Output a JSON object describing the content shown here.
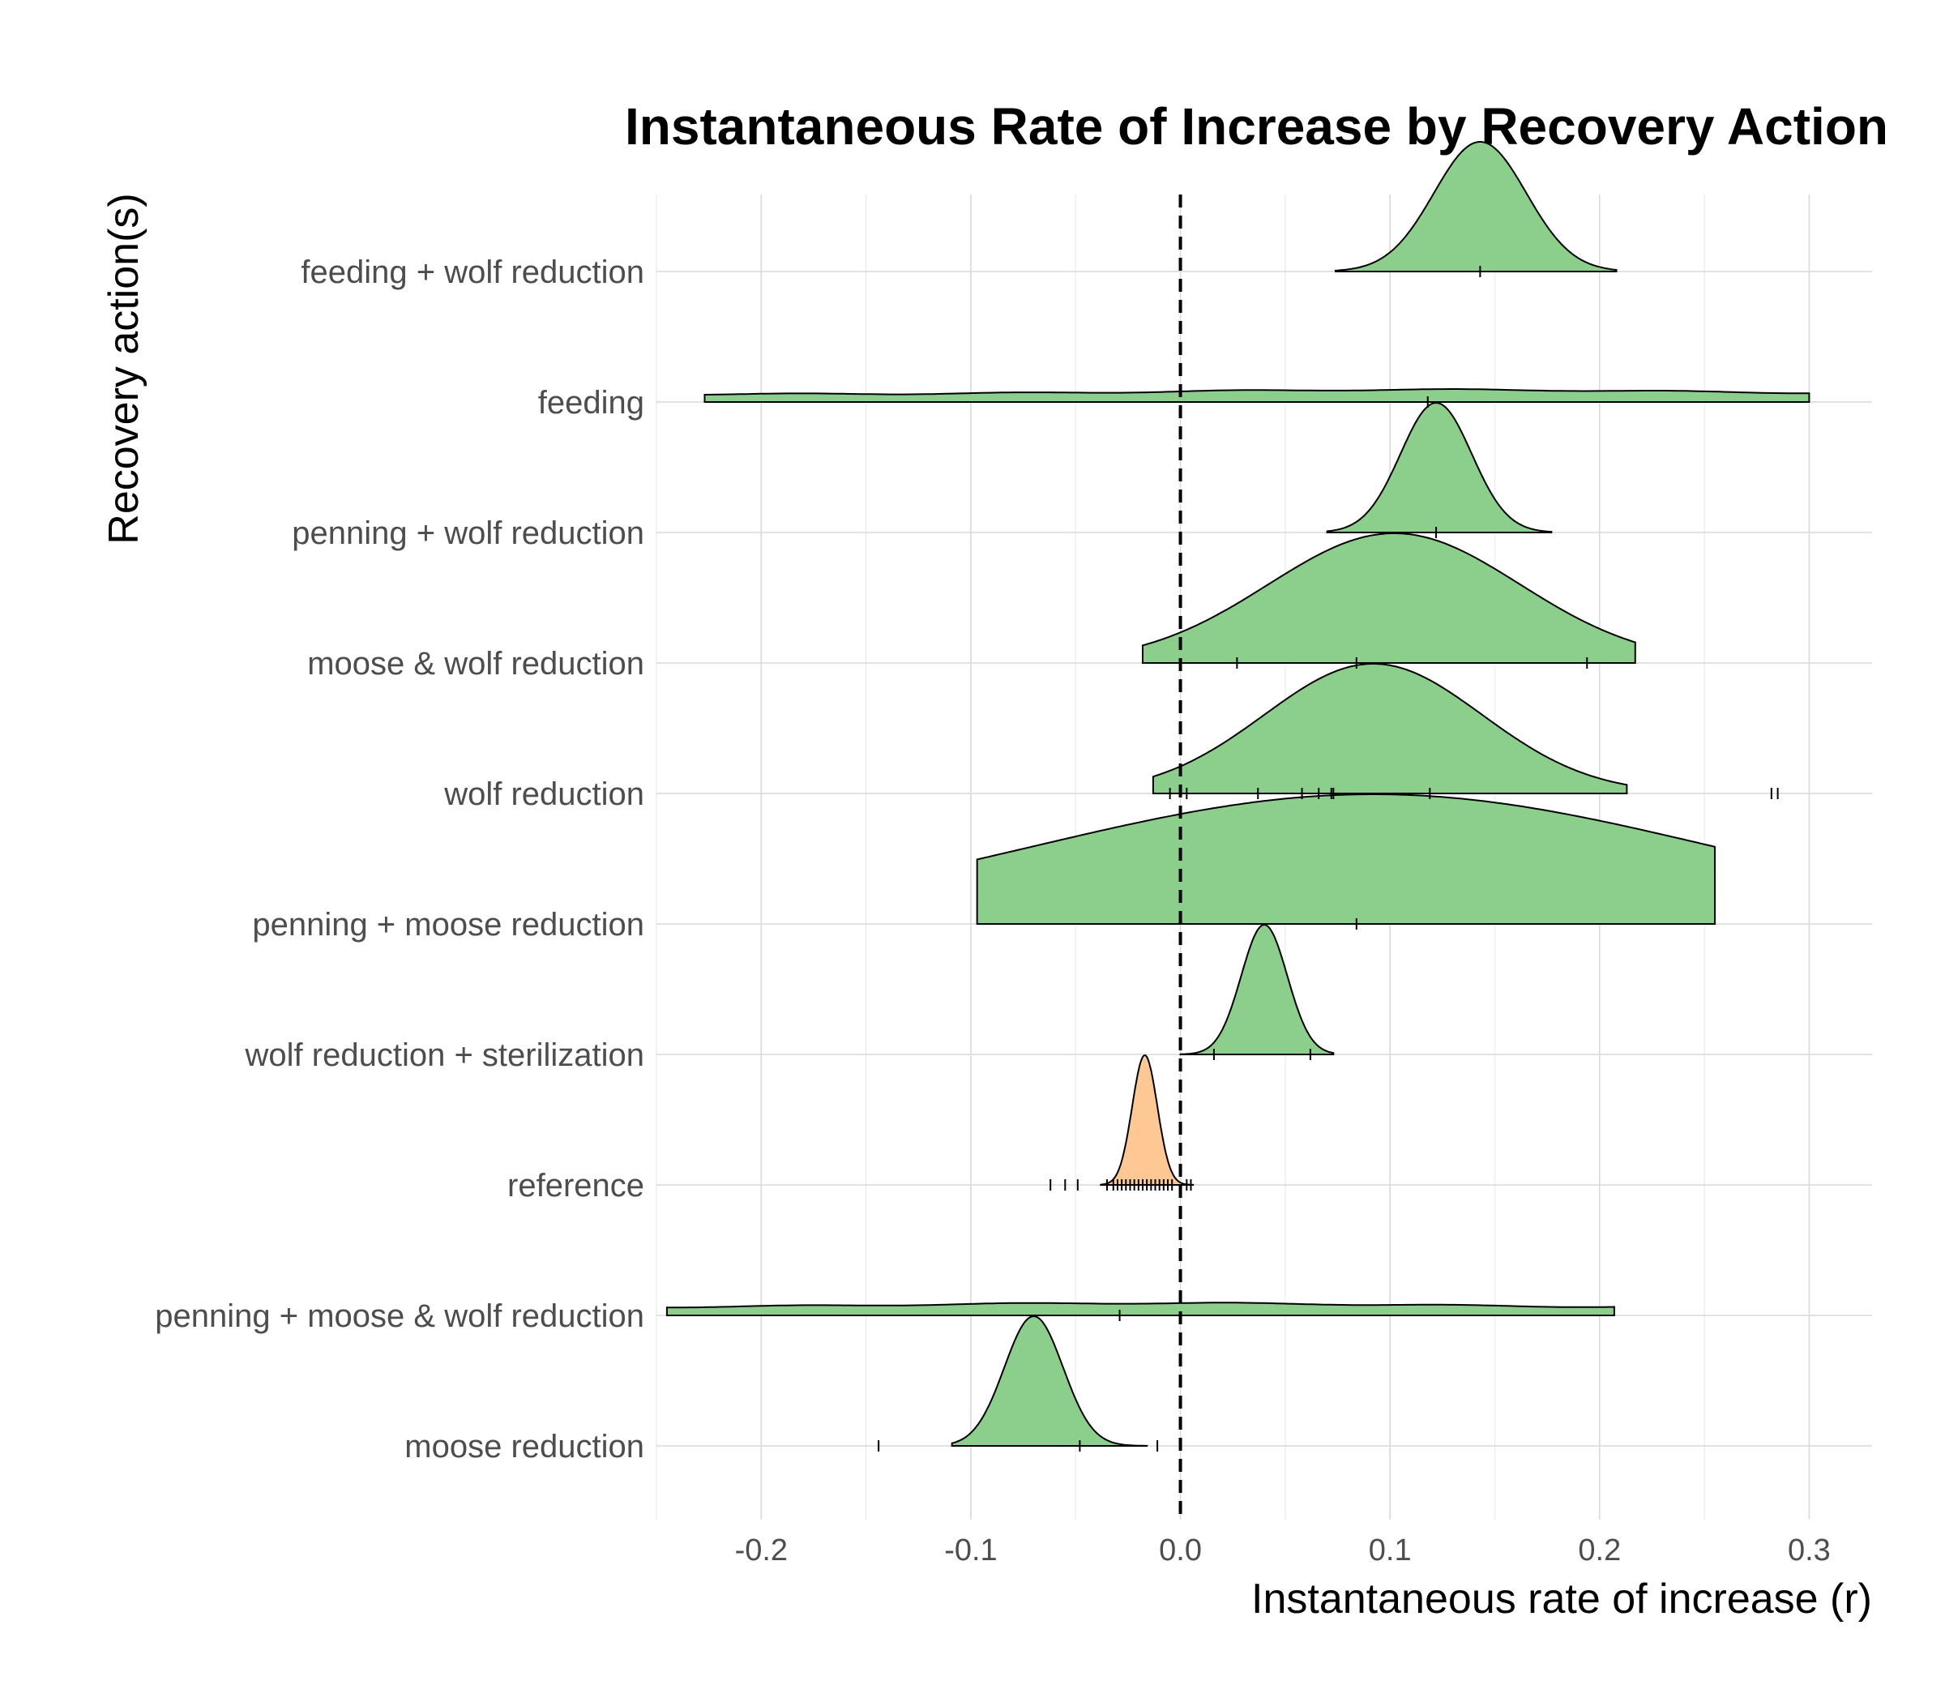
{
  "chart_data": {
    "type": "ridgeline",
    "title": "Instantaneous Rate of Increase by Recovery Action",
    "xlabel": "Instantaneous rate of increase (r)",
    "ylabel": "Recovery action(s)",
    "xlim": [
      -0.25,
      0.33
    ],
    "x_ticks": [
      -0.2,
      -0.1,
      0.0,
      0.1,
      0.2,
      0.3
    ],
    "x_tick_labels": [
      "-0.2",
      "-0.1",
      "0.0",
      "0.1",
      "0.2",
      "0.3"
    ],
    "reference_line": {
      "x": 0.0,
      "style": "dashed"
    },
    "grid": true,
    "colors": {
      "action": "#8ccf8c",
      "reference": "#fdc894"
    },
    "series": [
      {
        "name": "feeding + wolf reduction",
        "group": "action",
        "mean": 0.143,
        "sd": 0.022,
        "range": [
          0.074,
          0.208
        ],
        "obs": [
          0.143
        ]
      },
      {
        "name": "feeding",
        "group": "action",
        "mean": 0.118,
        "sd": 0.6,
        "range": [
          -0.227,
          0.3
        ],
        "obs": [
          0.118
        ]
      },
      {
        "name": "penning + wolf reduction",
        "group": "action",
        "mean": 0.122,
        "sd": 0.017,
        "range": [
          0.07,
          0.177
        ],
        "obs": [
          0.122
        ]
      },
      {
        "name": "moose & wolf reduction",
        "group": "action",
        "mean": 0.102,
        "sd": 0.06,
        "range": [
          -0.018,
          0.217
        ],
        "obs": [
          0.027,
          0.084,
          0.194
        ]
      },
      {
        "name": "wolf reduction",
        "group": "action",
        "mean": 0.092,
        "sd": 0.052,
        "range": [
          -0.013,
          0.213
        ],
        "obs": [
          -0.005,
          0.003,
          0.037,
          0.058,
          0.066,
          0.072,
          0.073,
          0.119,
          0.282,
          0.285
        ]
      },
      {
        "name": "penning + moose reduction",
        "group": "action",
        "mean": 0.092,
        "sd": 0.16,
        "range": [
          -0.097,
          0.255
        ],
        "obs": [
          0.084
        ]
      },
      {
        "name": "wolf reduction + sterilization",
        "group": "action",
        "mean": 0.04,
        "sd": 0.011,
        "range": [
          0.0,
          0.073
        ],
        "obs": [
          0.016,
          0.062
        ]
      },
      {
        "name": "reference",
        "group": "reference",
        "mean": -0.017,
        "sd": 0.006,
        "range": [
          -0.038,
          0.006
        ],
        "obs": [
          -0.062,
          -0.055,
          -0.049,
          -0.035,
          -0.032,
          -0.03,
          -0.028,
          -0.026,
          -0.024,
          -0.022,
          -0.02,
          -0.018,
          -0.016,
          -0.014,
          -0.012,
          -0.01,
          -0.008,
          -0.006,
          -0.004,
          0.003,
          0.005
        ]
      },
      {
        "name": "penning + moose & wolf reduction",
        "group": "action",
        "mean": -0.015,
        "sd": 0.6,
        "range": [
          -0.245,
          0.207
        ],
        "obs": [
          -0.029
        ]
      },
      {
        "name": "moose reduction",
        "group": "action",
        "mean": -0.07,
        "sd": 0.014,
        "range": [
          -0.109,
          -0.016
        ],
        "obs": [
          -0.144,
          -0.048,
          -0.011
        ]
      }
    ]
  }
}
